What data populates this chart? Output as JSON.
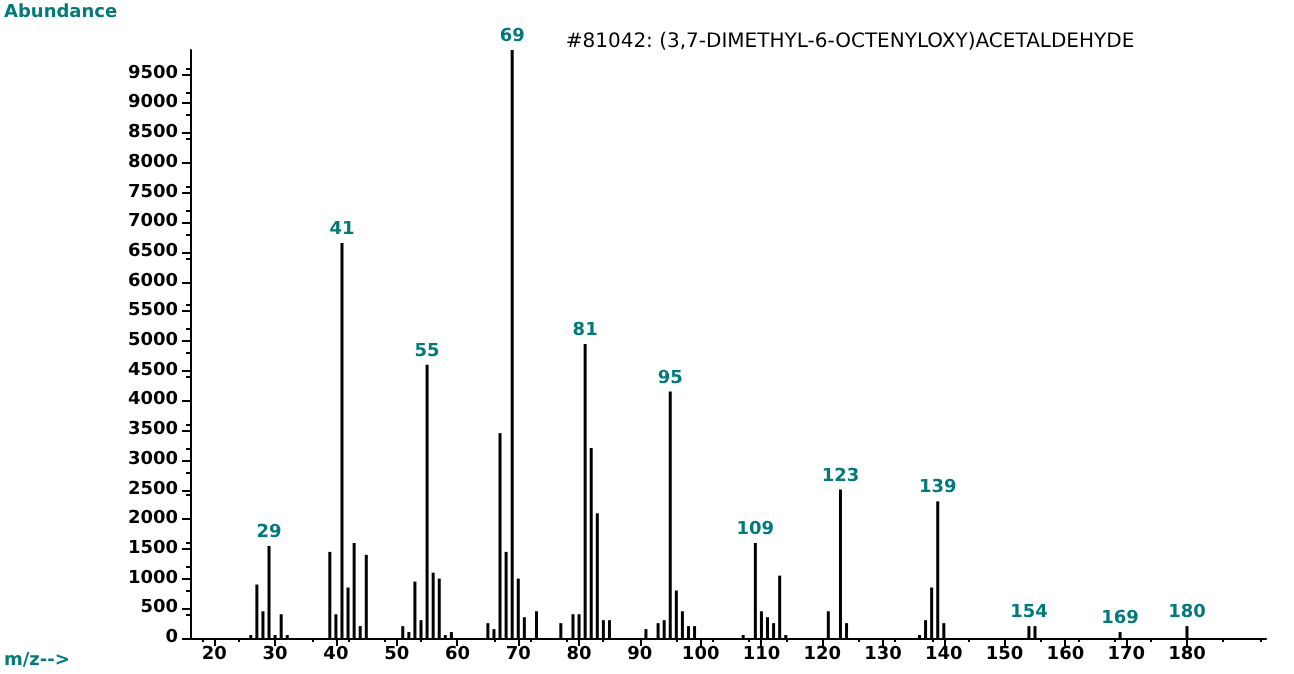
{
  "chart_data": {
    "type": "bar",
    "title": "#81042: (3,7-DIMETHYL-6-OCTENYLOXY)ACETALDEHYDE",
    "xlabel": "m/z-->",
    "ylabel": "Abundance",
    "x": [
      26,
      27,
      28,
      29,
      30,
      31,
      32,
      39,
      40,
      41,
      42,
      43,
      44,
      45,
      51,
      52,
      53,
      54,
      55,
      56,
      57,
      58,
      59,
      65,
      66,
      67,
      68,
      69,
      70,
      71,
      73,
      77,
      79,
      80,
      81,
      82,
      83,
      84,
      85,
      91,
      93,
      94,
      95,
      96,
      97,
      98,
      99,
      107,
      109,
      110,
      111,
      112,
      113,
      114,
      121,
      123,
      124,
      136,
      137,
      138,
      139,
      140,
      154,
      155,
      169,
      180
    ],
    "series": [
      {
        "color": "#000000",
        "values": [
          50,
          900,
          450,
          1550,
          50,
          400,
          50,
          1450,
          400,
          6650,
          850,
          1600,
          200,
          1400,
          200,
          100,
          950,
          300,
          4600,
          1100,
          1000,
          50,
          100,
          250,
          150,
          3450,
          1450,
          9900,
          1000,
          350,
          450,
          250,
          400,
          400,
          4950,
          3200,
          2100,
          300,
          300,
          150,
          250,
          300,
          4150,
          800,
          450,
          200,
          200,
          50,
          1600,
          450,
          350,
          250,
          1050,
          50,
          450,
          2500,
          250,
          50,
          300,
          850,
          2300,
          250,
          200,
          200,
          100,
          200
        ]
      }
    ],
    "annotations": [
      {
        "text": "29",
        "x": 29,
        "y": 1550
      },
      {
        "text": "41",
        "x": 41,
        "y": 6650
      },
      {
        "text": "55",
        "x": 55,
        "y": 4600
      },
      {
        "text": "69",
        "x": 69,
        "y": 9900
      },
      {
        "text": "81",
        "x": 81,
        "y": 4950
      },
      {
        "text": "95",
        "x": 95,
        "y": 4150
      },
      {
        "text": "109",
        "x": 109,
        "y": 1600
      },
      {
        "text": "123",
        "x": 123,
        "y": 2500
      },
      {
        "text": "139",
        "x": 139,
        "y": 2300
      },
      {
        "text": "154",
        "x": 154,
        "y": 200
      },
      {
        "text": "169",
        "x": 169,
        "y": 100
      },
      {
        "text": "180",
        "x": 180,
        "y": 200
      }
    ],
    "xlim": [
      16,
      193
    ],
    "xticks": [
      20,
      30,
      40,
      50,
      60,
      70,
      80,
      90,
      100,
      110,
      120,
      130,
      140,
      150,
      160,
      170,
      180
    ],
    "ylim": [
      0,
      9900
    ],
    "yticks": [
      0,
      500,
      1000,
      1500,
      2000,
      2500,
      3000,
      3500,
      4000,
      4500,
      5000,
      5500,
      6000,
      6500,
      7000,
      7500,
      8000,
      8500,
      9000,
      9500
    ],
    "grid": false
  }
}
